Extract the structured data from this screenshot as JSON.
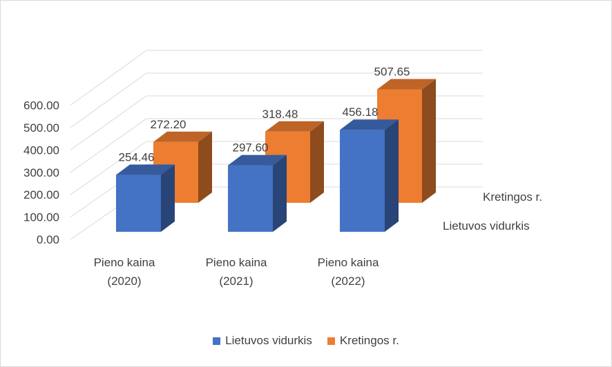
{
  "chart_data": {
    "type": "bar",
    "style": "3d-clustered-column",
    "categories": [
      "Pieno kaina (2020)",
      "Pieno kaina (2021)",
      "Pieno kaina (2022)"
    ],
    "category_lines": [
      [
        "Pieno kaina",
        "(2020)"
      ],
      [
        "Pieno kaina",
        "(2021)"
      ],
      [
        "Pieno kaina",
        "(2022)"
      ]
    ],
    "series": [
      {
        "name": "Lietuvos vidurkis",
        "values": [
          254.46,
          297.6,
          456.18
        ],
        "labels": [
          "254.46",
          "297.60",
          "456.18"
        ],
        "color": "#4472c4"
      },
      {
        "name": "Kretingos r.",
        "values": [
          272.2,
          318.48,
          507.65
        ],
        "labels": [
          "272.20",
          "318.48",
          "507.65"
        ],
        "color": "#ed7d31"
      }
    ],
    "y_ticks": [
      "0.00",
      "100.00",
      "200.00",
      "300.00",
      "400.00",
      "500.00",
      "600.00"
    ],
    "ylim": [
      0,
      600
    ],
    "grid": true,
    "legend_position": "bottom"
  }
}
